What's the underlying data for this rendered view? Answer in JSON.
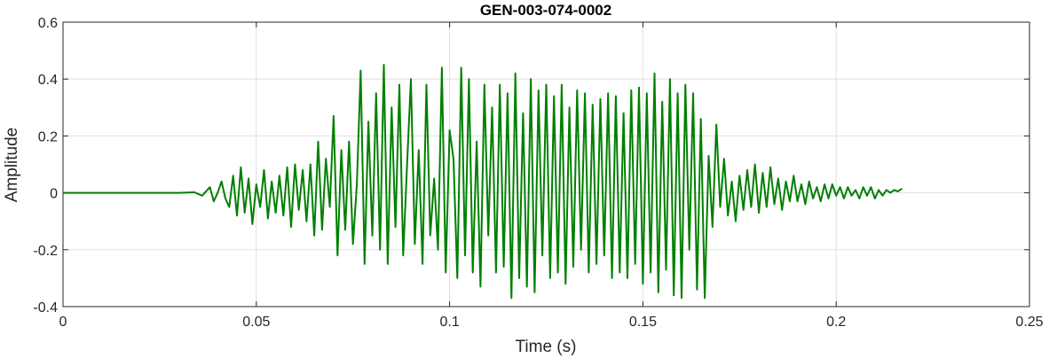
{
  "chart_data": {
    "type": "line",
    "title": "GEN-003-074-0002",
    "xlabel": "Time (s)",
    "ylabel": "Amplitude",
    "xlim": [
      0,
      0.25
    ],
    "ylim": [
      -0.4,
      0.6
    ],
    "xticks": [
      0,
      0.05,
      0.1,
      0.15,
      0.2,
      0.25
    ],
    "xtick_labels": [
      "0",
      "0.05",
      "0.1",
      "0.15",
      "0.2",
      "0.25"
    ],
    "yticks": [
      -0.4,
      -0.2,
      0,
      0.2,
      0.4,
      0.6
    ],
    "ytick_labels": [
      "-0.4",
      "-0.2",
      "0",
      "0.2",
      "0.4",
      "0.6"
    ],
    "grid": true,
    "line_color": "#008000",
    "series": [
      {
        "x": [
          0,
          0.03,
          0.034,
          0.036,
          0.038,
          0.039,
          0.04,
          0.041,
          0.042,
          0.043,
          0.044,
          0.045,
          0.046,
          0.047,
          0.048,
          0.049,
          0.05,
          0.051,
          0.052,
          0.053,
          0.054,
          0.055,
          0.056,
          0.057,
          0.058,
          0.059,
          0.06,
          0.061,
          0.062,
          0.063,
          0.064,
          0.065,
          0.066,
          0.067,
          0.068,
          0.069,
          0.07,
          0.071,
          0.072,
          0.073,
          0.074,
          0.075,
          0.076,
          0.077,
          0.078,
          0.079,
          0.08,
          0.081,
          0.082,
          0.083,
          0.084,
          0.085,
          0.086,
          0.087,
          0.088,
          0.089,
          0.09,
          0.091,
          0.092,
          0.093,
          0.094,
          0.095,
          0.096,
          0.097,
          0.098,
          0.099,
          0.1,
          0.101,
          0.102,
          0.103,
          0.104,
          0.105,
          0.106,
          0.107,
          0.108,
          0.109,
          0.11,
          0.111,
          0.112,
          0.113,
          0.114,
          0.115,
          0.116,
          0.117,
          0.118,
          0.119,
          0.12,
          0.121,
          0.122,
          0.123,
          0.124,
          0.125,
          0.126,
          0.127,
          0.128,
          0.129,
          0.13,
          0.131,
          0.132,
          0.133,
          0.134,
          0.135,
          0.136,
          0.137,
          0.138,
          0.139,
          0.14,
          0.141,
          0.142,
          0.143,
          0.144,
          0.145,
          0.146,
          0.147,
          0.148,
          0.149,
          0.15,
          0.151,
          0.152,
          0.153,
          0.154,
          0.155,
          0.156,
          0.157,
          0.158,
          0.159,
          0.16,
          0.161,
          0.162,
          0.163,
          0.164,
          0.165,
          0.166,
          0.167,
          0.168,
          0.169,
          0.17,
          0.171,
          0.172,
          0.173,
          0.174,
          0.175,
          0.176,
          0.177,
          0.178,
          0.179,
          0.18,
          0.181,
          0.182,
          0.183,
          0.184,
          0.185,
          0.186,
          0.187,
          0.188,
          0.189,
          0.19,
          0.191,
          0.192,
          0.193,
          0.194,
          0.195,
          0.196,
          0.197,
          0.198,
          0.199,
          0.2,
          0.201,
          0.202,
          0.203,
          0.204,
          0.205,
          0.206,
          0.207,
          0.208,
          0.209,
          0.21,
          0.211,
          0.212,
          0.213,
          0.214,
          0.215,
          0.216,
          0.217
        ],
        "y": [
          0,
          0,
          0.002,
          -0.01,
          0.02,
          -0.03,
          0.0,
          0.04,
          -0.02,
          -0.05,
          0.06,
          -0.08,
          0.09,
          -0.07,
          0.05,
          -0.11,
          0.03,
          -0.05,
          0.08,
          -0.09,
          0.04,
          -0.07,
          0.06,
          -0.08,
          0.09,
          -0.12,
          0.1,
          -0.06,
          0.08,
          -0.1,
          0.1,
          -0.15,
          0.18,
          -0.13,
          0.12,
          -0.05,
          0.27,
          -0.22,
          0.15,
          -0.13,
          0.18,
          -0.18,
          0.03,
          0.43,
          -0.25,
          0.25,
          -0.15,
          0.35,
          -0.2,
          0.45,
          -0.25,
          0.3,
          -0.12,
          0.38,
          -0.22,
          0.1,
          0.4,
          -0.18,
          0.15,
          -0.25,
          0.38,
          -0.15,
          0.05,
          -0.2,
          0.44,
          -0.28,
          0.22,
          0.12,
          -0.3,
          0.44,
          -0.22,
          0.4,
          -0.28,
          0.18,
          -0.33,
          0.38,
          -0.15,
          0.3,
          -0.28,
          0.38,
          -0.26,
          0.35,
          -0.37,
          0.42,
          -0.3,
          0.28,
          -0.33,
          0.4,
          -0.35,
          0.36,
          -0.22,
          0.38,
          -0.3,
          0.34,
          -0.28,
          0.38,
          -0.32,
          0.3,
          -0.26,
          0.36,
          -0.2,
          0.35,
          -0.28,
          0.31,
          -0.25,
          0.33,
          -0.22,
          0.35,
          -0.3,
          0.34,
          -0.28,
          0.28,
          -0.3,
          0.36,
          -0.25,
          0.37,
          -0.32,
          0.35,
          -0.28,
          0.42,
          -0.35,
          0.32,
          -0.27,
          0.4,
          -0.36,
          0.35,
          -0.37,
          0.38,
          -0.2,
          0.35,
          -0.34,
          0.26,
          -0.37,
          0.13,
          -0.12,
          0.24,
          -0.05,
          0.12,
          -0.08,
          0.04,
          -0.1,
          0.06,
          -0.06,
          0.08,
          -0.05,
          0.1,
          -0.07,
          0.07,
          -0.05,
          0.09,
          -0.04,
          0.05,
          -0.06,
          0.04,
          -0.03,
          0.06,
          -0.03,
          0.03,
          -0.04,
          0.04,
          -0.02,
          0.02,
          -0.03,
          0.03,
          -0.02,
          0.03,
          -0.01,
          0.02,
          -0.02,
          0.02,
          -0.01,
          0.01,
          -0.02,
          0.02,
          -0.01,
          0.02,
          -0.02,
          0.01,
          -0.01,
          0.01,
          0.0,
          0.01,
          0.005,
          0.015
        ]
      }
    ]
  }
}
